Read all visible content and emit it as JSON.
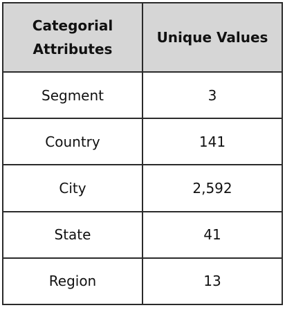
{
  "table": {
    "headers": [
      "Categorial\nAttributes",
      "Unique Values"
    ],
    "rows": [
      {
        "attribute": "Segment",
        "unique_values": "3"
      },
      {
        "attribute": "Country",
        "unique_values": "141"
      },
      {
        "attribute": "City",
        "unique_values": "2,592"
      },
      {
        "attribute": "State",
        "unique_values": "41"
      },
      {
        "attribute": "Region",
        "unique_values": "13"
      }
    ]
  }
}
